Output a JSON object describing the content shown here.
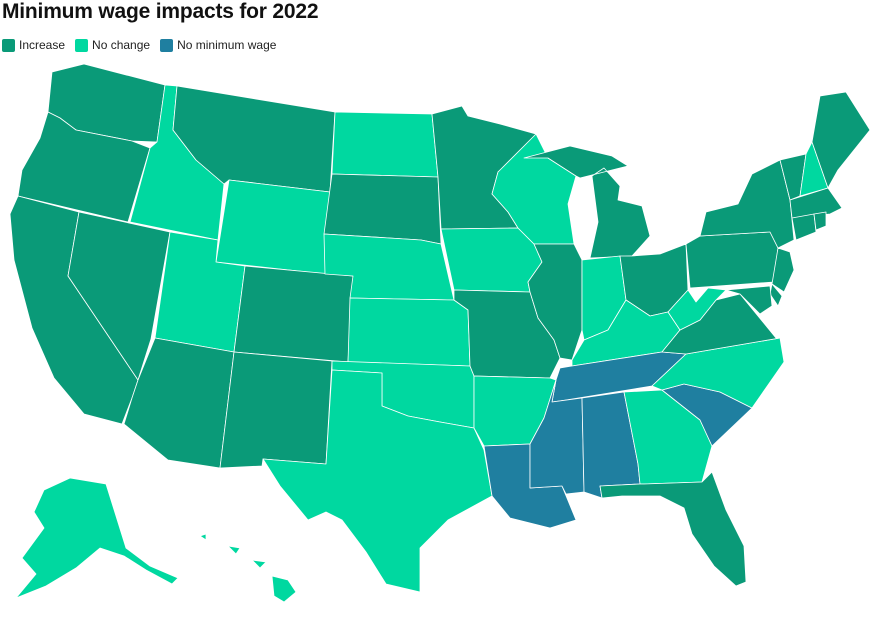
{
  "title": "Minimum wage impacts for 2022",
  "legend": [
    {
      "key": "increase",
      "label": "Increase",
      "color": "#0a9a78"
    },
    {
      "key": "nochange",
      "label": "No change",
      "color": "#00d8a0"
    },
    {
      "key": "none",
      "label": "No minimum wage",
      "color": "#1f7fa0"
    }
  ],
  "states": {
    "WA": "increase",
    "OR": "increase",
    "CA": "increase",
    "NV": "increase",
    "ID": "nochange",
    "MT": "increase",
    "WY": "nochange",
    "UT": "nochange",
    "AZ": "increase",
    "CO": "increase",
    "NM": "increase",
    "ND": "nochange",
    "SD": "increase",
    "NE": "nochange",
    "KS": "nochange",
    "OK": "nochange",
    "TX": "nochange",
    "MN": "increase",
    "IA": "nochange",
    "MO": "increase",
    "AR": "nochange",
    "LA": "none",
    "WI": "nochange",
    "IL": "increase",
    "MI": "increase",
    "IN": "nochange",
    "OH": "increase",
    "KY": "nochange",
    "TN": "none",
    "MS": "none",
    "AL": "none",
    "GA": "nochange",
    "FL": "increase",
    "SC": "none",
    "NC": "nochange",
    "VA": "increase",
    "WV": "nochange",
    "PA": "increase",
    "NY": "increase",
    "VT": "increase",
    "NH": "nochange",
    "ME": "increase",
    "MA": "increase",
    "CT": "increase",
    "RI": "increase",
    "NJ": "increase",
    "DE": "increase",
    "MD": "increase",
    "AK": "nochange",
    "HI": "nochange"
  }
}
